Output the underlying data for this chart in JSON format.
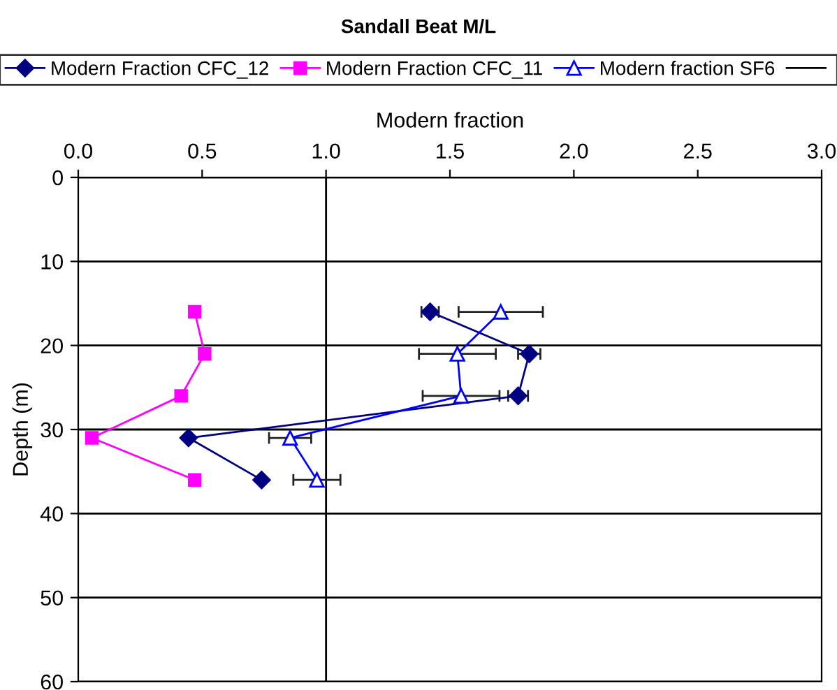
{
  "chart_data": {
    "type": "line",
    "title": "Sandall Beat M/L",
    "xlabel": "Modern fraction",
    "ylabel": "Depth (m)",
    "xlim": [
      0,
      3
    ],
    "xticks": [
      {
        "value": 0,
        "label": "0.0"
      },
      {
        "value": 0.5,
        "label": "0.5"
      },
      {
        "value": 1,
        "label": "1.0"
      },
      {
        "value": 1.5,
        "label": "1.5"
      },
      {
        "value": 2,
        "label": "2.0"
      },
      {
        "value": 2.5,
        "label": "2.5"
      },
      {
        "value": 3,
        "label": "3.0"
      }
    ],
    "ylim": [
      60,
      0
    ],
    "yticks": [
      0,
      10,
      20,
      30,
      40,
      50,
      60
    ],
    "grid": "y",
    "legend": "top",
    "ref_lines": [
      {
        "axis": "x",
        "value": 1,
        "color": "#000000"
      }
    ],
    "series": [
      {
        "name": "Modern Fraction CFC_12",
        "color": "#000080",
        "marker": "diamond",
        "x": [
          1.42,
          1.82,
          1.775,
          0.445,
          0.74
        ],
        "values": [
          16,
          21,
          26,
          31,
          36
        ],
        "xerrors": [
          0.035,
          0.045,
          0.04,
          null,
          null
        ]
      },
      {
        "name": "Modern Fraction CFC_11",
        "color": "#ff00ff",
        "marker": "square",
        "x": [
          0.47,
          0.51,
          0.415,
          0.055,
          0.47
        ],
        "values": [
          16,
          21,
          26,
          31,
          36
        ]
      },
      {
        "name": "Modern fraction SF6",
        "color": "#0000ff",
        "marker": "triangle",
        "x": [
          1.705,
          1.53,
          1.545,
          0.855,
          0.963
        ],
        "values": [
          16,
          21,
          26,
          31,
          36
        ],
        "xerrors": [
          0.17,
          0.155,
          0.155,
          0.085,
          0.095
        ]
      }
    ]
  }
}
